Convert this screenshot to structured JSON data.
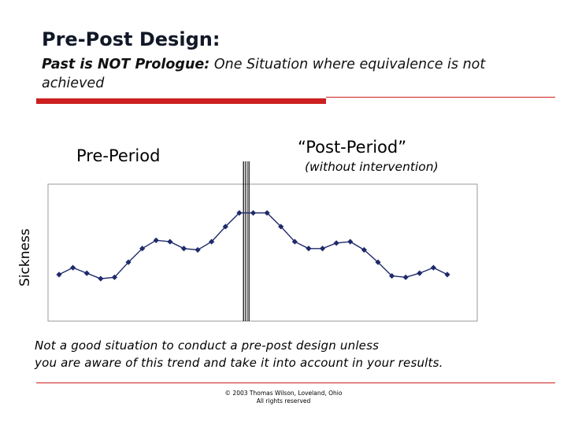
{
  "title": "Pre-Post Design:",
  "subtitle": {
    "bold": "Past is NOT Prologue:",
    "rest": " One Situation where equivalence is not achieved"
  },
  "labels": {
    "pre": "Pre-Period",
    "post": "“Post-Period”",
    "post_sub": "(without intervention)"
  },
  "note": {
    "line1": "Not a good situation to conduct a pre-post design unless",
    "line2": "you are aware of this trend and take it into account in your results."
  },
  "copyright": {
    "line1": "© 2003 Thomas Wilson, Loveland, Ohio",
    "line2": "All rights reserved"
  },
  "colors": {
    "accent": "#cc1f1f",
    "series": "#1f2a6b"
  },
  "chart_data": {
    "type": "line",
    "title": "",
    "xlabel": "",
    "ylabel": "Sickness",
    "grid": false,
    "legend": "none",
    "divider_after_index": 14,
    "ylim": [
      0,
      10
    ],
    "x": [
      1,
      2,
      3,
      4,
      5,
      6,
      7,
      8,
      9,
      10,
      11,
      12,
      13,
      14,
      15,
      16,
      17,
      18,
      19,
      20,
      21,
      22,
      23,
      24,
      25,
      26,
      27,
      28,
      29
    ],
    "series": [
      {
        "values": [
          3.4,
          3.9,
          3.5,
          3.1,
          3.2,
          4.3,
          5.3,
          5.9,
          5.8,
          5.3,
          5.2,
          5.8,
          6.9,
          7.9,
          7.9,
          7.9,
          6.9,
          5.8,
          5.3,
          5.3,
          5.7,
          5.8,
          5.2,
          4.3,
          3.3,
          3.2,
          3.5,
          3.9,
          3.4
        ]
      }
    ]
  }
}
